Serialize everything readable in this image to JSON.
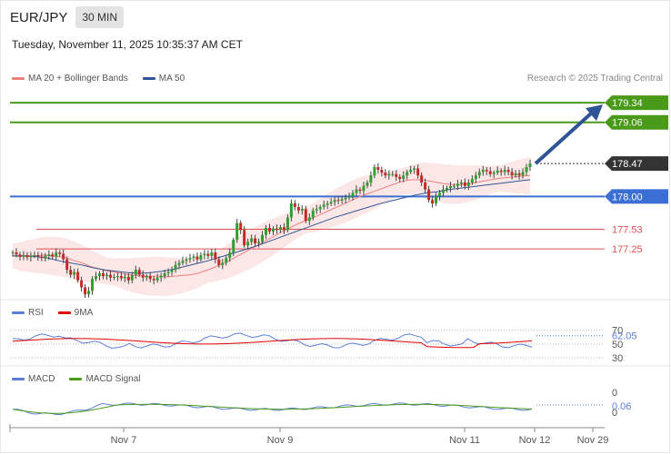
{
  "header": {
    "symbol": "EUR/JPY",
    "timeframe": "30 MIN",
    "datetime": "Tuesday, November 11, 2025 10:35:37 AM CET",
    "copyright": "Research © 2025 Trading Central"
  },
  "legends": {
    "main": [
      {
        "label": "MA 20 + Bollinger Bands",
        "color": "#f08080"
      },
      {
        "label": "MA 50",
        "color": "#2f5597"
      }
    ],
    "rsi": [
      {
        "label": "RSI",
        "color": "#5b7fd6"
      },
      {
        "label": "9MA",
        "color": "#e00000"
      }
    ],
    "macd": [
      {
        "label": "MACD",
        "color": "#5b7fd6"
      },
      {
        "label": "MACD Signal",
        "color": "#4a9a1a"
      }
    ]
  },
  "chart_data": [
    {
      "type": "candlestick",
      "x_ticks": [
        "Nov 7",
        "Nov 9",
        "Nov 11",
        "Nov 12",
        "Nov 29"
      ],
      "ylim": [
        176.55,
        179.55
      ],
      "levels": [
        {
          "value": 179.34,
          "label": "179.34",
          "color": "#4a9a1a",
          "style": "solid",
          "marker": "filled"
        },
        {
          "value": 179.06,
          "label": "179.06",
          "color": "#4a9a1a",
          "style": "solid",
          "marker": "filled"
        },
        {
          "value": 178.47,
          "label": "178.47",
          "color": "#333333",
          "style": "dotted",
          "marker": "filled"
        },
        {
          "value": 178.0,
          "label": "178.00",
          "color": "#3b6fd6",
          "style": "solid",
          "marker": "filled"
        },
        {
          "value": 177.53,
          "label": "177.53",
          "color": "#e05050",
          "style": "thin",
          "marker": "text"
        },
        {
          "value": 177.25,
          "label": "177.25",
          "color": "#e05050",
          "style": "thin",
          "marker": "text"
        }
      ],
      "projection": {
        "from": 178.47,
        "to": 179.34,
        "color": "#2f5597"
      },
      "close_series": [
        177.2,
        177.17,
        177.14,
        177.16,
        177.13,
        177.15,
        177.16,
        177.14,
        177.12,
        177.15,
        177.17,
        177.14,
        177.2,
        177.18,
        177.1,
        176.95,
        176.88,
        176.92,
        176.8,
        176.7,
        176.6,
        176.65,
        176.82,
        176.86,
        176.9,
        176.86,
        176.88,
        176.84,
        176.85,
        176.86,
        176.83,
        176.85,
        176.8,
        176.88,
        176.95,
        176.88,
        176.84,
        176.86,
        176.82,
        176.8,
        176.84,
        176.86,
        176.9,
        176.92,
        176.95,
        177.02,
        177.05,
        177.08,
        177.1,
        177.12,
        177.14,
        177.1,
        177.16,
        177.18,
        177.15,
        177.2,
        177.1,
        177.02,
        177.05,
        177.12,
        177.2,
        177.38,
        177.62,
        177.52,
        177.3,
        177.35,
        177.4,
        177.33,
        177.35,
        177.45,
        177.55,
        177.5,
        177.54,
        177.52,
        177.56,
        177.52,
        177.7,
        177.9,
        177.85,
        177.8,
        177.82,
        177.65,
        177.7,
        177.8,
        177.82,
        177.85,
        177.88,
        177.9,
        177.92,
        177.95,
        177.94,
        177.96,
        177.98,
        178.0,
        178.05,
        178.1,
        178.08,
        178.15,
        178.2,
        178.3,
        178.42,
        178.38,
        178.34,
        178.3,
        178.32,
        178.32,
        178.28,
        178.25,
        178.3,
        178.35,
        178.38,
        178.4,
        178.3,
        178.2,
        178.1,
        177.95,
        177.9,
        178.0,
        178.05,
        178.1,
        178.12,
        178.15,
        178.15,
        178.18,
        178.2,
        178.15,
        178.2,
        178.25,
        178.3,
        178.35,
        178.38,
        178.36,
        178.32,
        178.34,
        178.37,
        178.35,
        178.38,
        178.35,
        178.3,
        178.33,
        178.3,
        178.35,
        178.42,
        178.47
      ],
      "ma20_series": [
        177.15,
        177.14,
        177.15,
        177.15,
        177.16,
        177.15,
        177.14,
        177.12,
        177.08,
        177.05,
        177.0,
        176.97,
        176.94,
        176.92,
        176.9,
        176.88,
        176.87,
        176.86,
        176.86,
        176.86,
        176.85,
        176.86,
        176.87,
        176.88,
        176.9,
        176.94,
        176.98,
        177.03,
        177.08,
        177.14,
        177.2,
        177.26,
        177.32,
        177.38,
        177.44,
        177.5,
        177.56,
        177.61,
        177.66,
        177.7,
        177.75,
        177.8,
        177.85,
        177.9,
        177.95,
        178.0,
        178.04,
        178.08,
        178.12,
        178.16,
        178.2,
        178.23,
        178.24,
        178.24,
        178.22,
        178.2,
        178.18,
        178.17,
        178.17,
        178.18,
        178.2,
        178.22,
        178.24,
        178.26,
        178.27,
        178.28,
        178.29,
        178.3
      ],
      "ma50_series": [
        177.15,
        177.15,
        177.14,
        177.12,
        177.08,
        177.05,
        177.02,
        176.98,
        176.95,
        176.93,
        176.91,
        176.9,
        176.91,
        176.93,
        176.96,
        177.0,
        177.04,
        177.08,
        177.13,
        177.18,
        177.23,
        177.28,
        177.34,
        177.4,
        177.46,
        177.52,
        177.58,
        177.64,
        177.7,
        177.75,
        177.8,
        177.85,
        177.9,
        177.94,
        177.98,
        178.02,
        178.05,
        178.07,
        178.1,
        178.12,
        178.14,
        178.16,
        178.18,
        178.2,
        178.22,
        178.24
      ],
      "bollinger": {
        "upper_fill": "#fce4e4"
      }
    },
    {
      "type": "line",
      "name": "RSI",
      "ylim": [
        25,
        80
      ],
      "y_ticks": [
        30,
        50,
        70
      ],
      "value_label": "62.05",
      "value": 62.05
    },
    {
      "type": "line",
      "name": "MACD",
      "y_ticks": [
        0
      ],
      "value_label": "0.06",
      "value": 0.06
    }
  ]
}
